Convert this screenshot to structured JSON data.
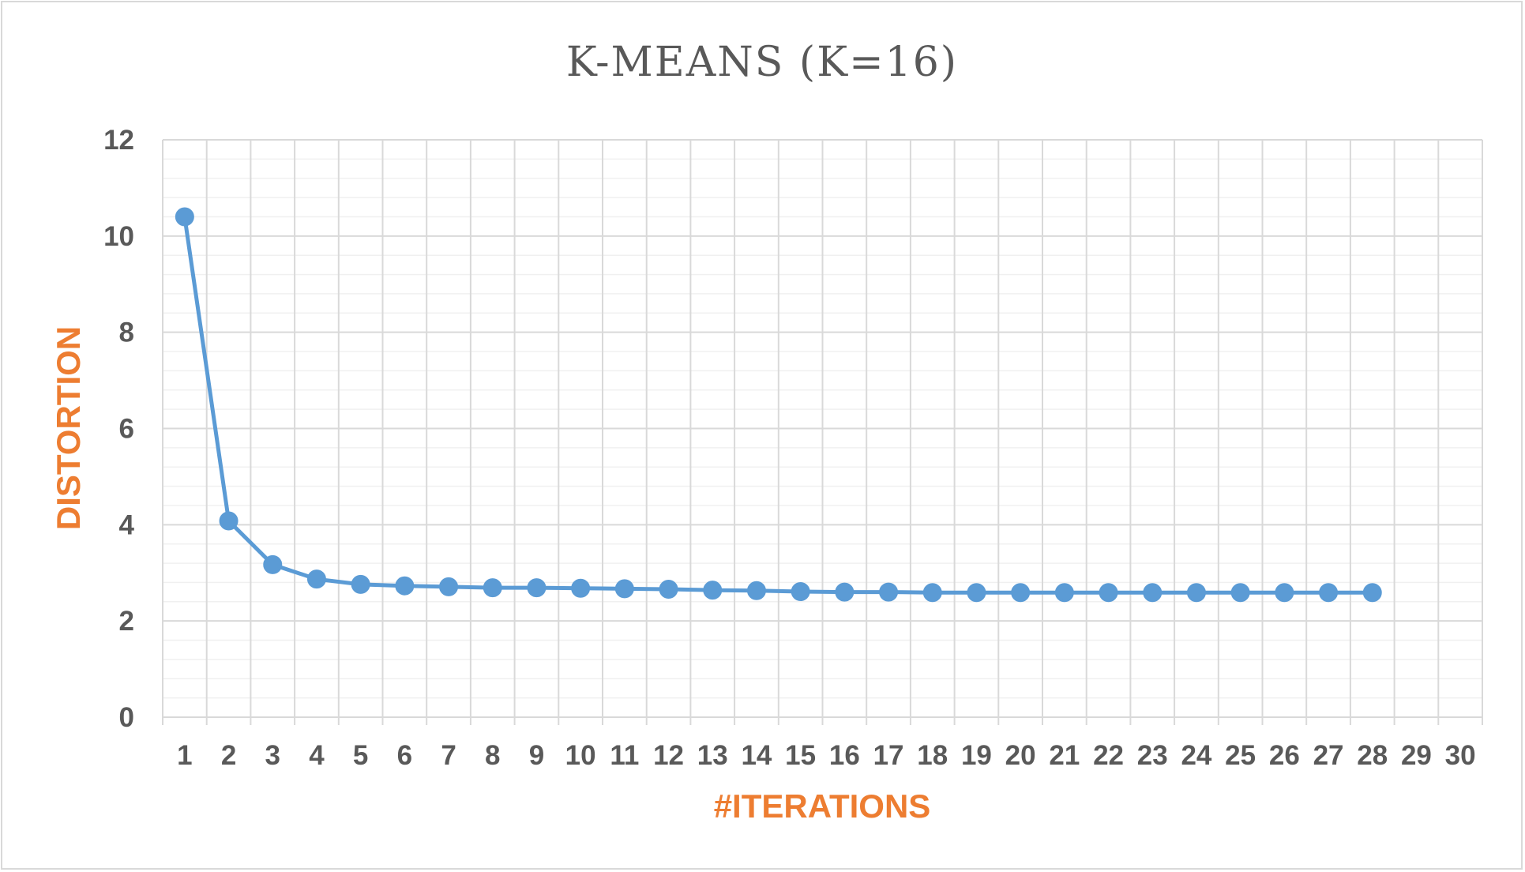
{
  "chart_data": {
    "type": "line",
    "title": "K-MEANS (K=16)",
    "xlabel": "#ITERATIONS",
    "ylabel": "DISTORTION",
    "categories": [
      "1",
      "2",
      "3",
      "4",
      "5",
      "6",
      "7",
      "8",
      "9",
      "10",
      "11",
      "12",
      "13",
      "14",
      "15",
      "16",
      "17",
      "18",
      "19",
      "20",
      "21",
      "22",
      "23",
      "24",
      "25",
      "26",
      "27",
      "28",
      "29",
      "30"
    ],
    "yticks": [
      "0",
      "2",
      "4",
      "6",
      "8",
      "10",
      "12"
    ],
    "ylim": [
      0,
      12
    ],
    "ymajor": 2,
    "yminor": 0.4,
    "grid": true,
    "legend": "none",
    "series": [
      {
        "name": "",
        "color": "#5b9bd5",
        "x": [
          1,
          2,
          3,
          4,
          5,
          6,
          7,
          8,
          9,
          10,
          11,
          12,
          13,
          14,
          15,
          16,
          17,
          18,
          19,
          20,
          21,
          22,
          23,
          24,
          25,
          26,
          27,
          28
        ],
        "values": [
          10.4,
          4.08,
          3.17,
          2.87,
          2.76,
          2.73,
          2.71,
          2.69,
          2.69,
          2.68,
          2.67,
          2.66,
          2.64,
          2.63,
          2.61,
          2.6,
          2.6,
          2.59,
          2.59,
          2.59,
          2.59,
          2.59,
          2.59,
          2.59,
          2.59,
          2.59,
          2.59,
          2.59
        ]
      }
    ]
  },
  "colors": {
    "line": "#5b9bd5",
    "axis_title": "#ed7d31",
    "tick_text": "#595959",
    "major_grid": "#d9d9d9",
    "minor_grid": "#f0f0f0"
  }
}
